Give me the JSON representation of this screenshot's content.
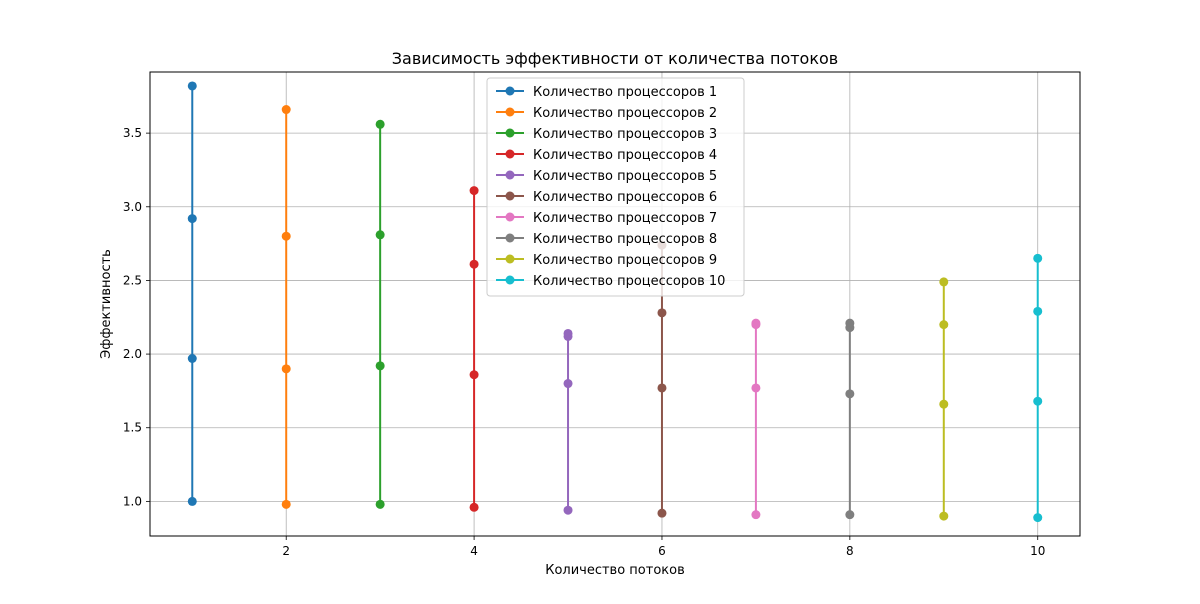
{
  "chart_data": {
    "type": "line",
    "title": "Зависимость эффективности от количества потоков",
    "xlabel": "Количество потоков",
    "ylabel": "Эффективность",
    "xlim": [
      0.55,
      10.45
    ],
    "ylim": [
      0.765,
      3.915
    ],
    "xticks": [
      2,
      4,
      6,
      8,
      10
    ],
    "yticks": [
      1.0,
      1.5,
      2.0,
      2.5,
      3.0,
      3.5
    ],
    "grid": true,
    "legend_position": "top-center",
    "series": [
      {
        "name": "Количество процессоров 1",
        "color": "#1f77b4",
        "x": [
          1,
          1,
          1,
          1
        ],
        "y": [
          1.0,
          1.97,
          2.92,
          3.82
        ]
      },
      {
        "name": "Количество процессоров 2",
        "color": "#ff7f0e",
        "x": [
          2,
          2,
          2,
          2
        ],
        "y": [
          0.98,
          1.9,
          2.8,
          3.66
        ]
      },
      {
        "name": "Количество процессоров 3",
        "color": "#2ca02c",
        "x": [
          3,
          3,
          3,
          3
        ],
        "y": [
          0.98,
          1.92,
          2.81,
          3.56
        ]
      },
      {
        "name": "Количество процессоров 4",
        "color": "#d62728",
        "x": [
          4,
          4,
          4,
          4
        ],
        "y": [
          0.96,
          1.86,
          2.61,
          3.11
        ]
      },
      {
        "name": "Количество процессоров 5",
        "color": "#9467bd",
        "x": [
          5,
          5,
          5,
          5
        ],
        "y": [
          0.94,
          1.8,
          2.12,
          2.14
        ]
      },
      {
        "name": "Количество процессоров 6",
        "color": "#8c564b",
        "x": [
          6,
          6,
          6,
          6
        ],
        "y": [
          0.92,
          1.77,
          2.28,
          2.74
        ]
      },
      {
        "name": "Количество процессоров 7",
        "color": "#e377c2",
        "x": [
          7,
          7,
          7,
          7
        ],
        "y": [
          0.91,
          1.77,
          2.2,
          2.21
        ]
      },
      {
        "name": "Количество процессоров 8",
        "color": "#7f7f7f",
        "x": [
          8,
          8,
          8,
          8
        ],
        "y": [
          0.91,
          1.73,
          2.18,
          2.21
        ]
      },
      {
        "name": "Количество процессоров 9",
        "color": "#bcbd22",
        "x": [
          9,
          9,
          9,
          9
        ],
        "y": [
          0.9,
          1.66,
          2.2,
          2.49
        ]
      },
      {
        "name": "Количество процессоров 10",
        "color": "#17becf",
        "x": [
          10,
          10,
          10,
          10
        ],
        "y": [
          0.89,
          1.68,
          2.29,
          2.65
        ]
      }
    ]
  }
}
